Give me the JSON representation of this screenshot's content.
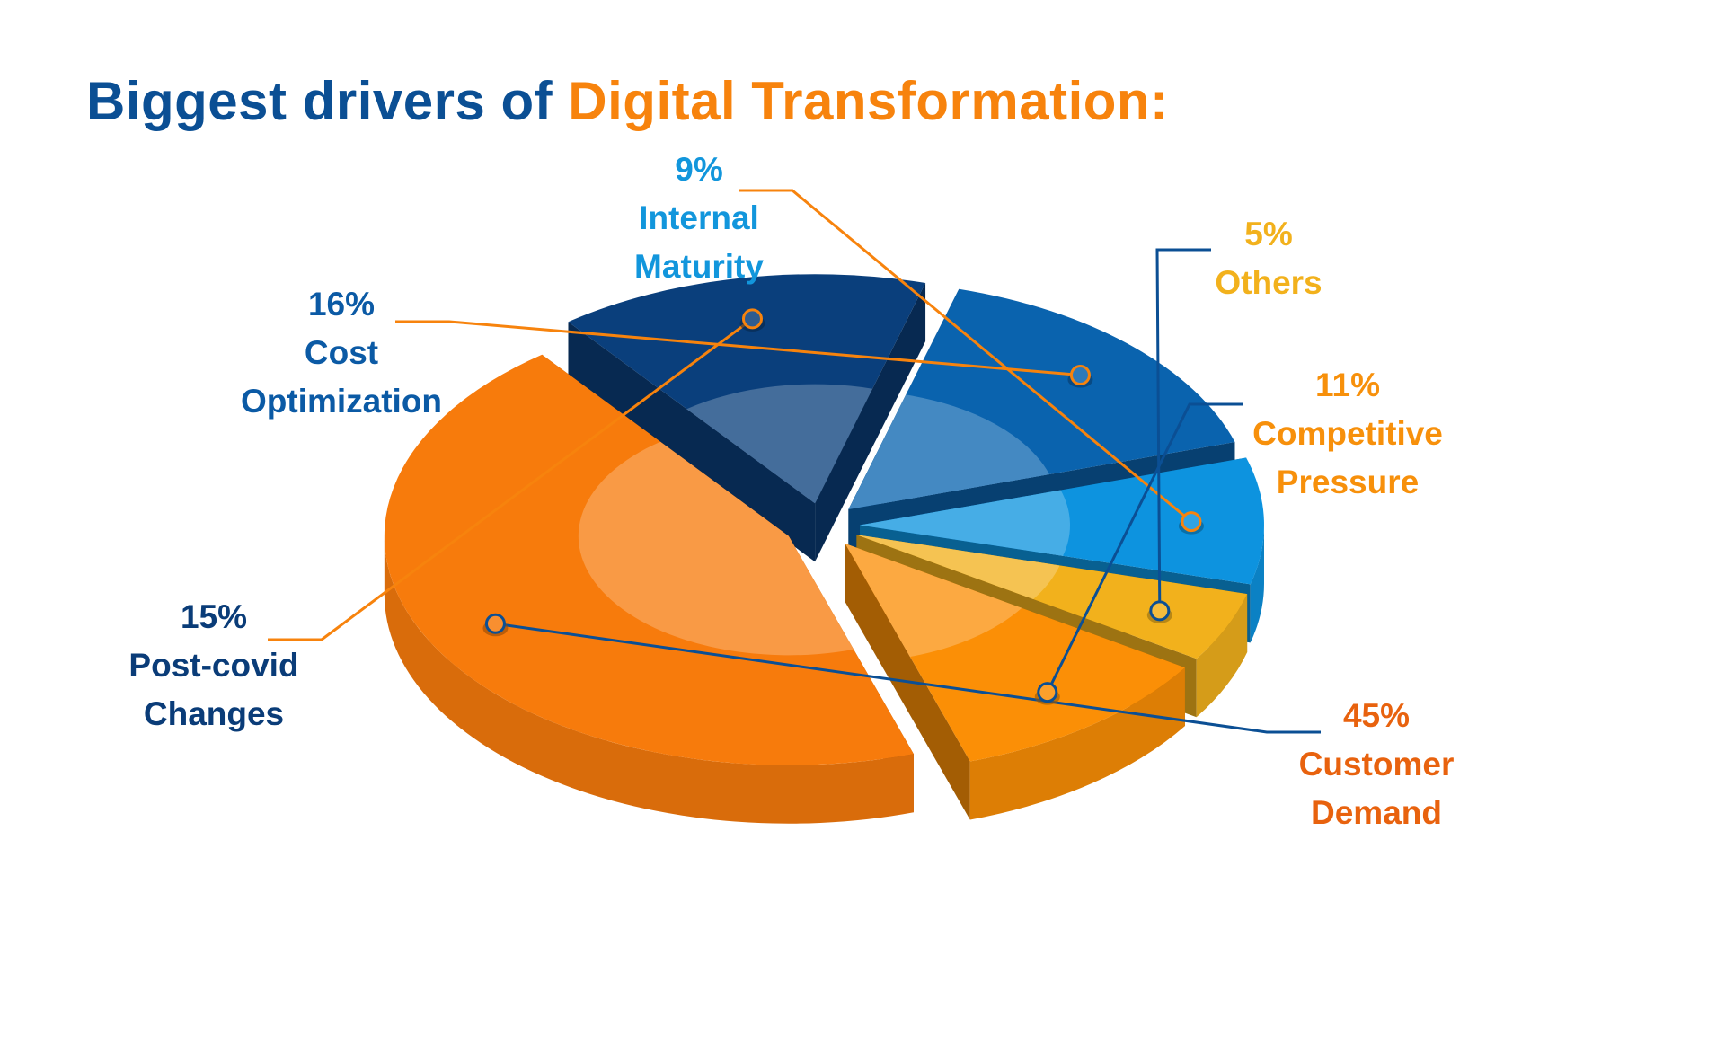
{
  "title": {
    "main": "Biggest drivers of",
    "accent": "Digital Transformation:"
  },
  "chart_data": {
    "type": "pie",
    "style": "3d-exploded",
    "slices": [
      {
        "value": 45,
        "value_label": "45%",
        "label_lines": [
          "Customer",
          "Demand"
        ],
        "color": "#f77b0c",
        "text_color": "#e8620e",
        "line_color": "#0b4f94"
      },
      {
        "value": 15,
        "value_label": "15%",
        "label_lines": [
          "Post-covid",
          "Changes"
        ],
        "color": "#0a3f7c",
        "text_color": "#0a3c78",
        "line_color": "#f7830d"
      },
      {
        "value": 16,
        "value_label": "16%",
        "label_lines": [
          "Cost",
          "Optimization"
        ],
        "color": "#0a63ae",
        "text_color": "#0b5aa5",
        "line_color": "#f7830d"
      },
      {
        "value": 9,
        "value_label": "9%",
        "label_lines": [
          "Internal",
          "Maturity"
        ],
        "color": "#0d93df",
        "text_color": "#1296dc",
        "line_color": "#f7830d"
      },
      {
        "value": 5,
        "value_label": "5%",
        "label_lines": [
          "Others"
        ],
        "color": "#f2b11c",
        "text_color": "#f2b11c",
        "line_color": "#0b4f94"
      },
      {
        "value": 11,
        "value_label": "11%",
        "label_lines": [
          "Competitive",
          "Pressure"
        ],
        "color": "#fb8f06",
        "text_color": "#f7900b",
        "line_color": "#0b4f94"
      }
    ]
  }
}
